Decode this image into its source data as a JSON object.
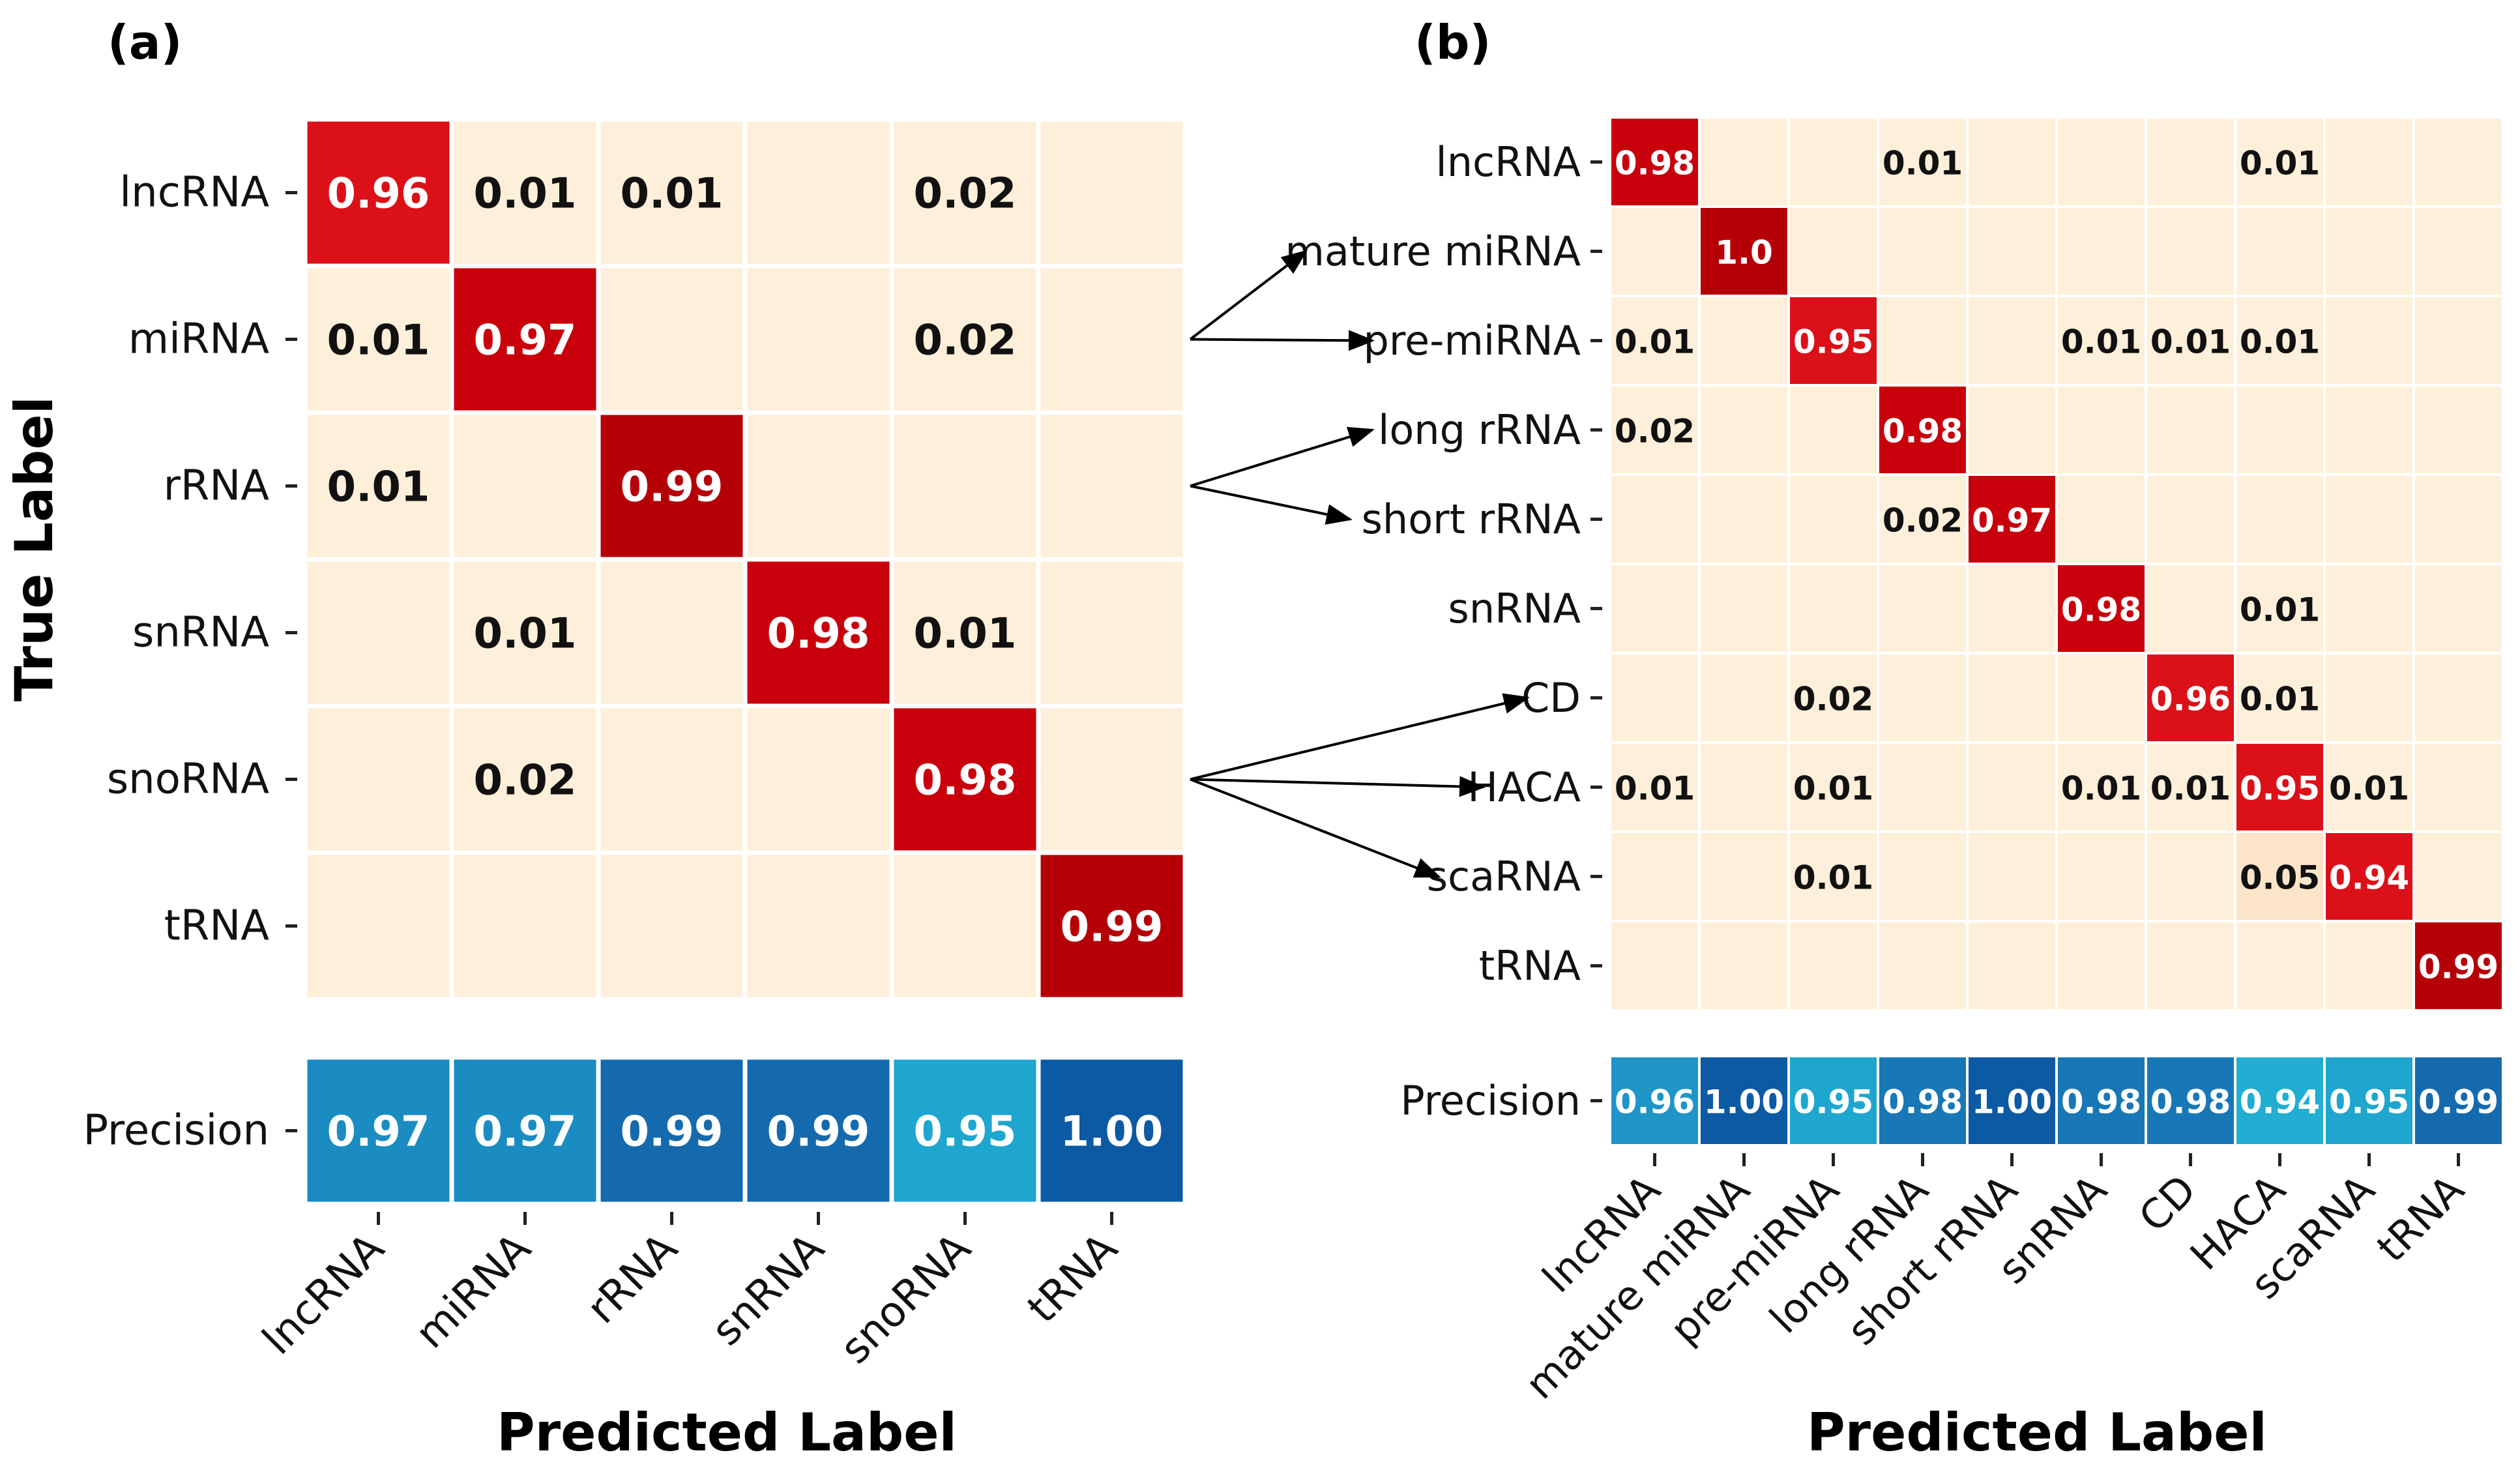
{
  "chart_data": [
    {
      "type": "heatmap",
      "panel_label": "(a)",
      "xlabel": "Predicted Label",
      "ylabel": "True Label",
      "row_labels": [
        "lncRNA",
        "miRNA",
        "rRNA",
        "snRNA",
        "snoRNA",
        "tRNA"
      ],
      "col_labels": [
        "lncRNA",
        "miRNA",
        "rRNA",
        "snRNA",
        "snoRNA",
        "tRNA"
      ],
      "matrix": [
        [
          0.96,
          0.01,
          0.01,
          null,
          0.02,
          null
        ],
        [
          0.01,
          0.97,
          null,
          null,
          0.02,
          null
        ],
        [
          0.01,
          null,
          0.99,
          null,
          null,
          null
        ],
        [
          null,
          0.01,
          null,
          0.98,
          0.01,
          null
        ],
        [
          null,
          0.02,
          null,
          null,
          0.98,
          null
        ],
        [
          null,
          null,
          null,
          null,
          null,
          0.99
        ]
      ],
      "precision_label": "Precision",
      "precision": [
        "0.97",
        "0.97",
        "0.99",
        "0.99",
        "0.95",
        "1.00"
      ]
    },
    {
      "type": "heatmap",
      "panel_label": "(b)",
      "xlabel": "Predicted Label",
      "row_labels": [
        "lncRNA",
        "mature miRNA",
        "pre-miRNA",
        "long rRNA",
        "short rRNA",
        "snRNA",
        "CD",
        "HACA",
        "scaRNA",
        "tRNA"
      ],
      "col_labels": [
        "lncRNA",
        "mature miRNA",
        "pre-miRNA",
        "long rRNA",
        "short rRNA",
        "snRNA",
        "CD",
        "HACA",
        "scaRNA",
        "tRNA"
      ],
      "matrix": [
        [
          0.98,
          null,
          null,
          0.01,
          null,
          null,
          null,
          0.01,
          null,
          null
        ],
        [
          null,
          "1.0",
          null,
          null,
          null,
          null,
          null,
          null,
          null,
          null
        ],
        [
          0.01,
          null,
          0.95,
          null,
          null,
          0.01,
          0.01,
          0.01,
          null,
          null
        ],
        [
          0.02,
          null,
          null,
          0.98,
          null,
          null,
          null,
          null,
          null,
          null
        ],
        [
          null,
          null,
          null,
          0.02,
          0.97,
          null,
          null,
          null,
          null,
          null
        ],
        [
          null,
          null,
          null,
          null,
          null,
          0.98,
          null,
          0.01,
          null,
          null
        ],
        [
          null,
          null,
          0.02,
          null,
          null,
          null,
          0.96,
          0.01,
          null,
          null
        ],
        [
          0.01,
          null,
          0.01,
          null,
          null,
          0.01,
          0.01,
          0.95,
          0.01,
          null
        ],
        [
          null,
          null,
          0.01,
          null,
          null,
          null,
          null,
          0.05,
          0.94,
          null
        ],
        [
          null,
          null,
          null,
          null,
          null,
          null,
          null,
          null,
          null,
          0.99
        ]
      ],
      "precision_label": "Precision",
      "precision": [
        "0.96",
        "1.00",
        "0.95",
        "0.98",
        "1.00",
        "0.98",
        "0.98",
        "0.94",
        "0.95",
        "0.99"
      ]
    }
  ],
  "colors": {
    "empty": "#fdefd9",
    "low": "#fbe4c7",
    "diag_dark": "#b60008",
    "diag_mid": "#c8000c",
    "diag_bright": "#dc1018",
    "prec_100": "#0c5aa4",
    "prec_99": "#156aae",
    "prec_98": "#1877b6",
    "prec_97": "#1a8cc2",
    "prec_96": "#1f94c6",
    "prec_95": "#1ea6cf",
    "prec_94": "#22aed3",
    "text_dark": "#111111",
    "text_light": "#ffffff"
  },
  "arrows": [
    {
      "from": "miRNA",
      "to": [
        "mature miRNA",
        "pre-miRNA"
      ]
    },
    {
      "from": "rRNA",
      "to": [
        "long rRNA",
        "short rRNA"
      ]
    },
    {
      "from": "snoRNA",
      "to": [
        "CD",
        "HACA",
        "scaRNA"
      ]
    }
  ]
}
